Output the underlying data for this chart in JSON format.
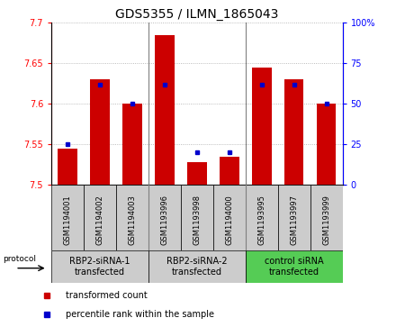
{
  "title": "GDS5355 / ILMN_1865043",
  "samples": [
    "GSM1194001",
    "GSM1194002",
    "GSM1194003",
    "GSM1193996",
    "GSM1193998",
    "GSM1194000",
    "GSM1193995",
    "GSM1193997",
    "GSM1193999"
  ],
  "transformed_counts": [
    7.545,
    7.63,
    7.6,
    7.685,
    7.528,
    7.535,
    7.645,
    7.63,
    7.6
  ],
  "percentile_ranks": [
    25,
    62,
    50,
    62,
    20,
    20,
    62,
    62,
    50
  ],
  "ylim_left": [
    7.5,
    7.7
  ],
  "ylim_right": [
    0,
    100
  ],
  "yticks_left": [
    7.5,
    7.55,
    7.6,
    7.65,
    7.7
  ],
  "yticks_right": [
    0,
    25,
    50,
    75,
    100
  ],
  "bar_color": "#cc0000",
  "point_color": "#0000cc",
  "bar_width": 0.6,
  "group_labels": [
    "RBP2-siRNA-1\ntransfected",
    "RBP2-siRNA-2\ntransfected",
    "control siRNA\ntransfected"
  ],
  "group_colors": [
    "#cccccc",
    "#cccccc",
    "#55cc55"
  ],
  "sample_box_color": "#cccccc",
  "protocol_label": "protocol",
  "legend_items": [
    {
      "color": "#cc0000",
      "label": "transformed count"
    },
    {
      "color": "#0000cc",
      "label": "percentile rank within the sample"
    }
  ],
  "title_fontsize": 10,
  "tick_fontsize": 7,
  "group_label_fontsize": 7,
  "legend_fontsize": 7
}
